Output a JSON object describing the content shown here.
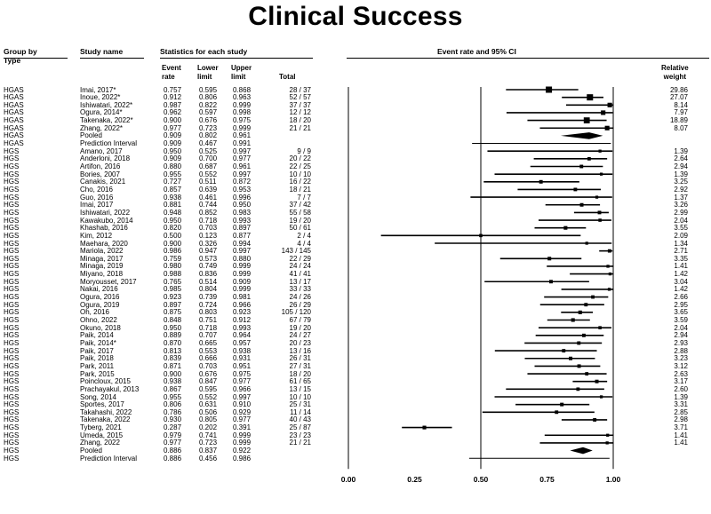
{
  "title": "Clinical Success",
  "headers": {
    "group_by": "Group by",
    "type": "Type",
    "study_name": "Study name",
    "stats_header": "Statistics for each study",
    "event_rate": [
      "Event",
      "rate"
    ],
    "lower_limit": [
      "Lower",
      "limit"
    ],
    "upper_limit": [
      "Upper",
      "limit"
    ],
    "total": "Total",
    "plot_header": "Event rate and 95% CI",
    "relative_weight": [
      "Relative",
      "weight"
    ]
  },
  "chart_data": {
    "type": "forest",
    "title": "Clinical Success",
    "xlabel": "Event rate and 95% CI",
    "xlim": [
      0.0,
      1.0
    ],
    "xticks": [
      "0.00",
      "0.25",
      "0.50",
      "0.75",
      "1.00"
    ],
    "xtick_values": [
      0.0,
      0.25,
      0.5,
      0.75,
      1.0
    ],
    "rows": [
      {
        "group": "HGAS",
        "study": "Imai, 2017*",
        "rate": "0.757",
        "lower": "0.595",
        "upper": "0.868",
        "total": "28 / 37",
        "weight": "29.86",
        "kind": "study"
      },
      {
        "group": "HGAS",
        "study": "Inoue, 2022*",
        "rate": "0.912",
        "lower": "0.806",
        "upper": "0.963",
        "total": "52 / 57",
        "weight": "27.07",
        "kind": "study"
      },
      {
        "group": "HGAS",
        "study": "Ishiwatari, 2022*",
        "rate": "0.987",
        "lower": "0.822",
        "upper": "0.999",
        "total": "37 / 37",
        "weight": "8.14",
        "kind": "study"
      },
      {
        "group": "HGAS",
        "study": "Ogura, 2014*",
        "rate": "0.962",
        "lower": "0.597",
        "upper": "0.998",
        "total": "12 / 12",
        "weight": "7.97",
        "kind": "study"
      },
      {
        "group": "HGAS",
        "study": "Takenaka, 2022*",
        "rate": "0.900",
        "lower": "0.676",
        "upper": "0.975",
        "total": "18 / 20",
        "weight": "18.89",
        "kind": "study"
      },
      {
        "group": "HGAS",
        "study": "Zhang, 2022*",
        "rate": "0.977",
        "lower": "0.723",
        "upper": "0.999",
        "total": "21 / 21",
        "weight": "8.07",
        "kind": "study"
      },
      {
        "group": "HGAS",
        "study": "Pooled",
        "rate": "0.909",
        "lower": "0.802",
        "upper": "0.961",
        "total": "",
        "weight": "",
        "kind": "pooled"
      },
      {
        "group": "HGAS",
        "study": "Prediction Interval",
        "rate": "0.909",
        "lower": "0.467",
        "upper": "0.991",
        "total": "",
        "weight": "",
        "kind": "pi"
      },
      {
        "group": "HGS",
        "study": "Amano, 2017",
        "rate": "0.950",
        "lower": "0.525",
        "upper": "0.997",
        "total": "9 / 9",
        "weight": "1.39",
        "kind": "study"
      },
      {
        "group": "HGS",
        "study": "Anderloni, 2018",
        "rate": "0.909",
        "lower": "0.700",
        "upper": "0.977",
        "total": "20 / 22",
        "weight": "2.64",
        "kind": "study"
      },
      {
        "group": "HGS",
        "study": "Artifon, 2016",
        "rate": "0.880",
        "lower": "0.687",
        "upper": "0.961",
        "total": "22 / 25",
        "weight": "2.94",
        "kind": "study"
      },
      {
        "group": "HGS",
        "study": "Bories, 2007",
        "rate": "0.955",
        "lower": "0.552",
        "upper": "0.997",
        "total": "10 / 10",
        "weight": "1.39",
        "kind": "study"
      },
      {
        "group": "HGS",
        "study": "Canakis, 2021",
        "rate": "0.727",
        "lower": "0.511",
        "upper": "0.872",
        "total": "16 / 22",
        "weight": "3.25",
        "kind": "study"
      },
      {
        "group": "HGS",
        "study": "Cho, 2016",
        "rate": "0.857",
        "lower": "0.639",
        "upper": "0.953",
        "total": "18 / 21",
        "weight": "2.92",
        "kind": "study"
      },
      {
        "group": "HGS",
        "study": "Guo, 2016",
        "rate": "0.938",
        "lower": "0.461",
        "upper": "0.996",
        "total": "7 / 7",
        "weight": "1.37",
        "kind": "study"
      },
      {
        "group": "HGS",
        "study": "Imai, 2017",
        "rate": "0.881",
        "lower": "0.744",
        "upper": "0.950",
        "total": "37 / 42",
        "weight": "3.26",
        "kind": "study"
      },
      {
        "group": "HGS",
        "study": "Ishiwatari, 2022",
        "rate": "0.948",
        "lower": "0.852",
        "upper": "0.983",
        "total": "55 / 58",
        "weight": "2.99",
        "kind": "study"
      },
      {
        "group": "HGS",
        "study": "Kawakubo, 2014",
        "rate": "0.950",
        "lower": "0.718",
        "upper": "0.993",
        "total": "19 / 20",
        "weight": "2.04",
        "kind": "study"
      },
      {
        "group": "HGS",
        "study": "Khashab, 2016",
        "rate": "0.820",
        "lower": "0.703",
        "upper": "0.897",
        "total": "50 / 61",
        "weight": "3.55",
        "kind": "study"
      },
      {
        "group": "HGS",
        "study": "Kim, 2012",
        "rate": "0.500",
        "lower": "0.123",
        "upper": "0.877",
        "total": "2 / 4",
        "weight": "2.09",
        "kind": "study"
      },
      {
        "group": "HGS",
        "study": "Maehara, 2020",
        "rate": "0.900",
        "lower": "0.326",
        "upper": "0.994",
        "total": "4 / 4",
        "weight": "1.34",
        "kind": "study"
      },
      {
        "group": "HGS",
        "study": "Mariola, 2022",
        "rate": "0.986",
        "lower": "0.947",
        "upper": "0.997",
        "total": "143 / 145",
        "weight": "2.71",
        "kind": "study"
      },
      {
        "group": "HGS",
        "study": "Minaga, 2017",
        "rate": "0.759",
        "lower": "0.573",
        "upper": "0.880",
        "total": "22 / 29",
        "weight": "3.35",
        "kind": "study"
      },
      {
        "group": "HGS",
        "study": "Minaga, 2019",
        "rate": "0.980",
        "lower": "0.749",
        "upper": "0.999",
        "total": "24 / 24",
        "weight": "1.41",
        "kind": "study"
      },
      {
        "group": "HGS",
        "study": "Miyano, 2018",
        "rate": "0.988",
        "lower": "0.836",
        "upper": "0.999",
        "total": "41 / 41",
        "weight": "1.42",
        "kind": "study"
      },
      {
        "group": "HGS",
        "study": "Moryousset, 2017",
        "rate": "0.765",
        "lower": "0.514",
        "upper": "0.909",
        "total": "13 / 17",
        "weight": "3.04",
        "kind": "study"
      },
      {
        "group": "HGS",
        "study": "Nakai, 2016",
        "rate": "0.985",
        "lower": "0.804",
        "upper": "0.999",
        "total": "33 / 33",
        "weight": "1.42",
        "kind": "study"
      },
      {
        "group": "HGS",
        "study": "Ogura, 2016",
        "rate": "0.923",
        "lower": "0.739",
        "upper": "0.981",
        "total": "24 / 26",
        "weight": "2.66",
        "kind": "study"
      },
      {
        "group": "HGS",
        "study": "Ogura, 2019",
        "rate": "0.897",
        "lower": "0.724",
        "upper": "0.966",
        "total": "26 / 29",
        "weight": "2.95",
        "kind": "study"
      },
      {
        "group": "HGS",
        "study": "Oh, 2016",
        "rate": "0.875",
        "lower": "0.803",
        "upper": "0.923",
        "total": "105 / 120",
        "weight": "3.65",
        "kind": "study"
      },
      {
        "group": "HGS",
        "study": "Ohno, 2022",
        "rate": "0.848",
        "lower": "0.751",
        "upper": "0.912",
        "total": "67 / 79",
        "weight": "3.59",
        "kind": "study"
      },
      {
        "group": "HGS",
        "study": "Okuno, 2018",
        "rate": "0.950",
        "lower": "0.718",
        "upper": "0.993",
        "total": "19 / 20",
        "weight": "2.04",
        "kind": "study"
      },
      {
        "group": "HGS",
        "study": "Paik, 2014",
        "rate": "0.889",
        "lower": "0.707",
        "upper": "0.964",
        "total": "24 / 27",
        "weight": "2.94",
        "kind": "study"
      },
      {
        "group": "HGS",
        "study": "Paik, 2014*",
        "rate": "0.870",
        "lower": "0.665",
        "upper": "0.957",
        "total": "20 / 23",
        "weight": "2.93",
        "kind": "study"
      },
      {
        "group": "HGS",
        "study": "Paik, 2017",
        "rate": "0.813",
        "lower": "0.553",
        "upper": "0.938",
        "total": "13 / 16",
        "weight": "2.88",
        "kind": "study"
      },
      {
        "group": "HGS",
        "study": "Paik, 2018",
        "rate": "0.839",
        "lower": "0.666",
        "upper": "0.931",
        "total": "26 / 31",
        "weight": "3.23",
        "kind": "study"
      },
      {
        "group": "HGS",
        "study": "Park, 2011",
        "rate": "0.871",
        "lower": "0.703",
        "upper": "0.951",
        "total": "27 / 31",
        "weight": "3.12",
        "kind": "study"
      },
      {
        "group": "HGS",
        "study": "Park, 2015",
        "rate": "0.900",
        "lower": "0.676",
        "upper": "0.975",
        "total": "18 / 20",
        "weight": "2.63",
        "kind": "study"
      },
      {
        "group": "HGS",
        "study": "Poincloux, 2015",
        "rate": "0.938",
        "lower": "0.847",
        "upper": "0.977",
        "total": "61 / 65",
        "weight": "3.17",
        "kind": "study"
      },
      {
        "group": "HGS",
        "study": "Prachayakul, 2013",
        "rate": "0.867",
        "lower": "0.595",
        "upper": "0.966",
        "total": "13 / 15",
        "weight": "2.60",
        "kind": "study"
      },
      {
        "group": "HGS",
        "study": "Song, 2014",
        "rate": "0.955",
        "lower": "0.552",
        "upper": "0.997",
        "total": "10 / 10",
        "weight": "1.39",
        "kind": "study"
      },
      {
        "group": "HGS",
        "study": "Sportes, 2017",
        "rate": "0.806",
        "lower": "0.631",
        "upper": "0.910",
        "total": "25 / 31",
        "weight": "3.31",
        "kind": "study"
      },
      {
        "group": "HGS",
        "study": "Takahashi, 2022",
        "rate": "0.786",
        "lower": "0.506",
        "upper": "0.929",
        "total": "11 / 14",
        "weight": "2.85",
        "kind": "study"
      },
      {
        "group": "HGS",
        "study": "Takenaka, 2022",
        "rate": "0.930",
        "lower": "0.805",
        "upper": "0.977",
        "total": "40 / 43",
        "weight": "2.98",
        "kind": "study"
      },
      {
        "group": "HGS",
        "study": "Tyberg, 2021",
        "rate": "0.287",
        "lower": "0.202",
        "upper": "0.391",
        "total": "25 / 87",
        "weight": "3.71",
        "kind": "study"
      },
      {
        "group": "HGS",
        "study": "Umeda, 2015",
        "rate": "0.979",
        "lower": "0.741",
        "upper": "0.999",
        "total": "23 / 23",
        "weight": "1.41",
        "kind": "study"
      },
      {
        "group": "HGS",
        "study": "Zhang, 2022",
        "rate": "0.977",
        "lower": "0.723",
        "upper": "0.999",
        "total": "21 / 21",
        "weight": "1.41",
        "kind": "study"
      },
      {
        "group": "HGS",
        "study": "Pooled",
        "rate": "0.886",
        "lower": "0.837",
        "upper": "0.922",
        "total": "",
        "weight": "",
        "kind": "pooled"
      },
      {
        "group": "HGS",
        "study": "Prediction Interval",
        "rate": "0.886",
        "lower": "0.456",
        "upper": "0.986",
        "total": "",
        "weight": "",
        "kind": "pi"
      }
    ]
  }
}
